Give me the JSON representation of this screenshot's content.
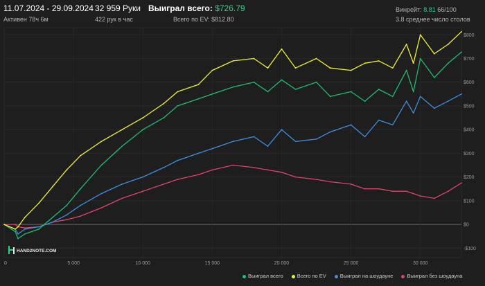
{
  "header": {
    "date_range": "11.07.2024 - 29.09.2024",
    "active": "Активен 78ч 6м",
    "hands": "32 959 Руки",
    "hands_per_hour": "422 рук в час",
    "won_total_label": "Выиграл всего:",
    "won_total_value": "$726.79",
    "ev_total": "Всего по EV: $812.80",
    "winrate_label": "Винрейт:",
    "winrate_value": "8.81",
    "winrate_rest": "66/100",
    "avg_tables": "3.8 среднее число столов"
  },
  "logo_text": "HAND2NOTE.COM",
  "legend": [
    {
      "label": "Выиграл всего",
      "color": "#1fbf6f"
    },
    {
      "label": "Всего по EV",
      "color": "#f2f234"
    },
    {
      "label": "Выиграл на шоудауне",
      "color": "#3d8fe0"
    },
    {
      "label": "Выиграл без шоудауна",
      "color": "#e0446a"
    }
  ],
  "chart_data": {
    "type": "line",
    "x_ticks": [
      0,
      5000,
      10000,
      15000,
      20000,
      25000,
      30000
    ],
    "x_tick_labels": [
      "0",
      "5 000",
      "10 000",
      "15 000",
      "20 000",
      "25 000",
      "30 000"
    ],
    "xlim": [
      0,
      32959
    ],
    "y_ticks": [
      -100,
      0,
      100,
      200,
      300,
      400,
      500,
      600,
      700,
      800
    ],
    "y_tick_labels": [
      "-$100",
      "$0",
      "$100",
      "$200",
      "$300",
      "$400",
      "$500",
      "$600",
      "$700",
      "$800"
    ],
    "ylim": [
      -140,
      830
    ],
    "grid": true,
    "legend_position": "bottom-right",
    "x": [
      0,
      800,
      1000,
      1500,
      2500,
      3500,
      4500,
      5500,
      7000,
      8500,
      10000,
      11500,
      12500,
      14000,
      15000,
      16500,
      18000,
      19000,
      20000,
      21000,
      22500,
      23500,
      25000,
      26000,
      27000,
      28000,
      29000,
      29500,
      30000,
      31000,
      32000,
      32959
    ],
    "series": [
      {
        "name": "Выиграл всего",
        "color": "#1fbf6f",
        "values": [
          0,
          -30,
          -60,
          -40,
          -20,
          30,
          80,
          150,
          250,
          330,
          400,
          450,
          500,
          530,
          550,
          580,
          600,
          560,
          610,
          570,
          600,
          540,
          560,
          520,
          570,
          540,
          650,
          560,
          700,
          620,
          680,
          727
        ]
      },
      {
        "name": "Всего по EV",
        "color": "#f2f234",
        "values": [
          0,
          -20,
          -10,
          30,
          90,
          160,
          230,
          290,
          350,
          400,
          450,
          510,
          560,
          590,
          650,
          690,
          700,
          660,
          740,
          660,
          700,
          660,
          650,
          680,
          690,
          660,
          760,
          680,
          800,
          720,
          760,
          813
        ]
      },
      {
        "name": "Выиграл на шоудауне",
        "color": "#3d8fe0",
        "values": [
          0,
          -20,
          -40,
          -20,
          -10,
          10,
          40,
          80,
          130,
          170,
          200,
          240,
          270,
          300,
          320,
          350,
          370,
          330,
          400,
          350,
          360,
          390,
          420,
          370,
          440,
          420,
          520,
          470,
          540,
          490,
          520,
          550
        ]
      },
      {
        "name": "Выиграл без шоудауна",
        "color": "#e0446a",
        "values": [
          0,
          0,
          -10,
          -15,
          -10,
          10,
          20,
          35,
          70,
          110,
          140,
          170,
          190,
          210,
          230,
          250,
          240,
          230,
          220,
          200,
          190,
          180,
          170,
          150,
          150,
          140,
          140,
          130,
          120,
          110,
          140,
          175
        ]
      }
    ]
  }
}
